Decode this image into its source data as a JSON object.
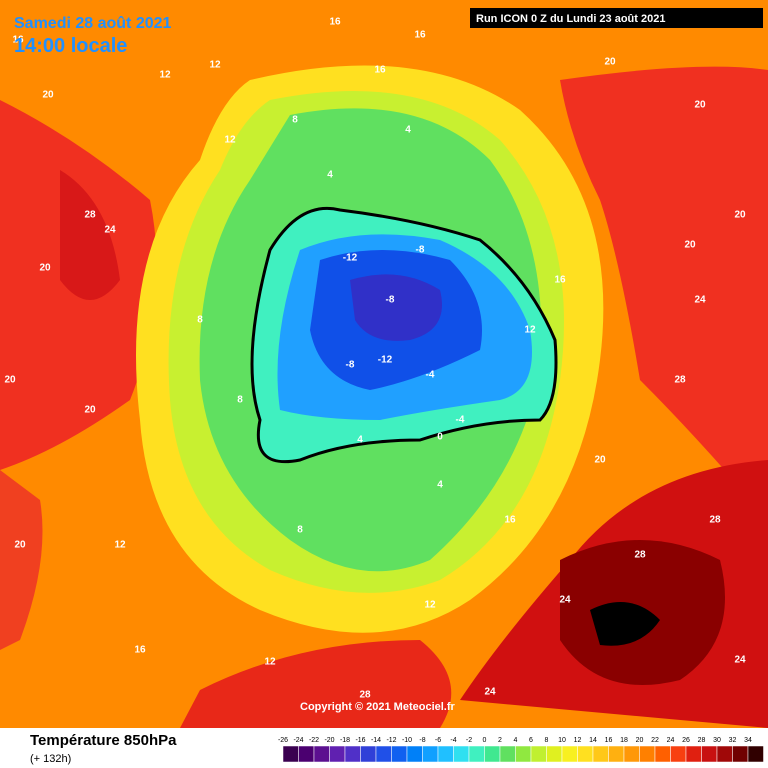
{
  "header": {
    "date": "Samedi 28 août 2021",
    "time": "14:00 locale",
    "run": "Run ICON 0 Z du Lundi 23 août 2021"
  },
  "footer": {
    "title": "Température 850hPa",
    "lead": "(+ 132h)",
    "copyright": "Copyright © 2021 Meteociel.fr"
  },
  "legend": {
    "ticks": [
      "-26",
      "-24",
      "-22",
      "-20",
      "-18",
      "-16",
      "-14",
      "-12",
      "-10",
      "-8",
      "-6",
      "-4",
      "-2",
      "0",
      "2",
      "4",
      "6",
      "8",
      "10",
      "12",
      "14",
      "16",
      "18",
      "20",
      "22",
      "24",
      "26",
      "28",
      "30",
      "32",
      "34"
    ],
    "colors": [
      "#3a0050",
      "#4b0070",
      "#5c1090",
      "#6020b0",
      "#5030c8",
      "#3040d8",
      "#2050e8",
      "#1060f0",
      "#0080f8",
      "#10a0ff",
      "#20c0ff",
      "#30e0f0",
      "#40f0c0",
      "#40e890",
      "#60e060",
      "#90e840",
      "#c0f030",
      "#e0f020",
      "#f8f020",
      "#ffe020",
      "#ffc818",
      "#ffb010",
      "#ff9808",
      "#ff8000",
      "#ff6000",
      "#f84010",
      "#e02010",
      "#c81010",
      "#a00808",
      "#700000",
      "#300000"
    ]
  },
  "map": {
    "labels": [
      "20",
      "16",
      "12",
      "12",
      "16",
      "16",
      "16",
      "20",
      "20",
      "20",
      "28",
      "24",
      "20",
      "20",
      "20",
      "20",
      "12",
      "12",
      "8",
      "4",
      "4",
      "-12",
      "-8",
      "-8",
      "-8",
      "-12",
      "-4",
      "-4",
      "0",
      "4",
      "4",
      "8",
      "12",
      "12",
      "28",
      "24",
      "24",
      "28",
      "28",
      "28",
      "24",
      "20",
      "16",
      "12",
      "16",
      "20",
      "8",
      "8",
      "16",
      "24"
    ]
  }
}
